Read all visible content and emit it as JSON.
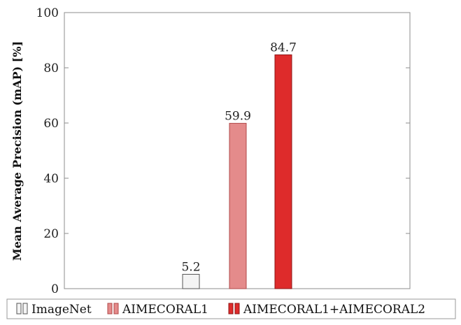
{
  "chart_data": {
    "type": "bar",
    "title": "",
    "xlabel": "",
    "ylabel": "Mean Average Precision (mAP) [%]",
    "ylim": [
      0,
      100
    ],
    "yticks": [
      0,
      20,
      40,
      60,
      80,
      100
    ],
    "grid": false,
    "legend_position": "bottom",
    "series": [
      {
        "name": "ImageNet",
        "value": 5.2,
        "label": "5.2",
        "fill": "#f4f4f4",
        "stroke": "#555555"
      },
      {
        "name": "AIMECORAL1",
        "value": 59.9,
        "label": "59.9",
        "fill": "#e48b8b",
        "stroke": "#b04a4a"
      },
      {
        "name": "AIMECORAL1+AIMECORAL2",
        "value": 84.7,
        "label": "84.7",
        "fill": "#de2b2b",
        "stroke": "#8e1515"
      }
    ]
  }
}
